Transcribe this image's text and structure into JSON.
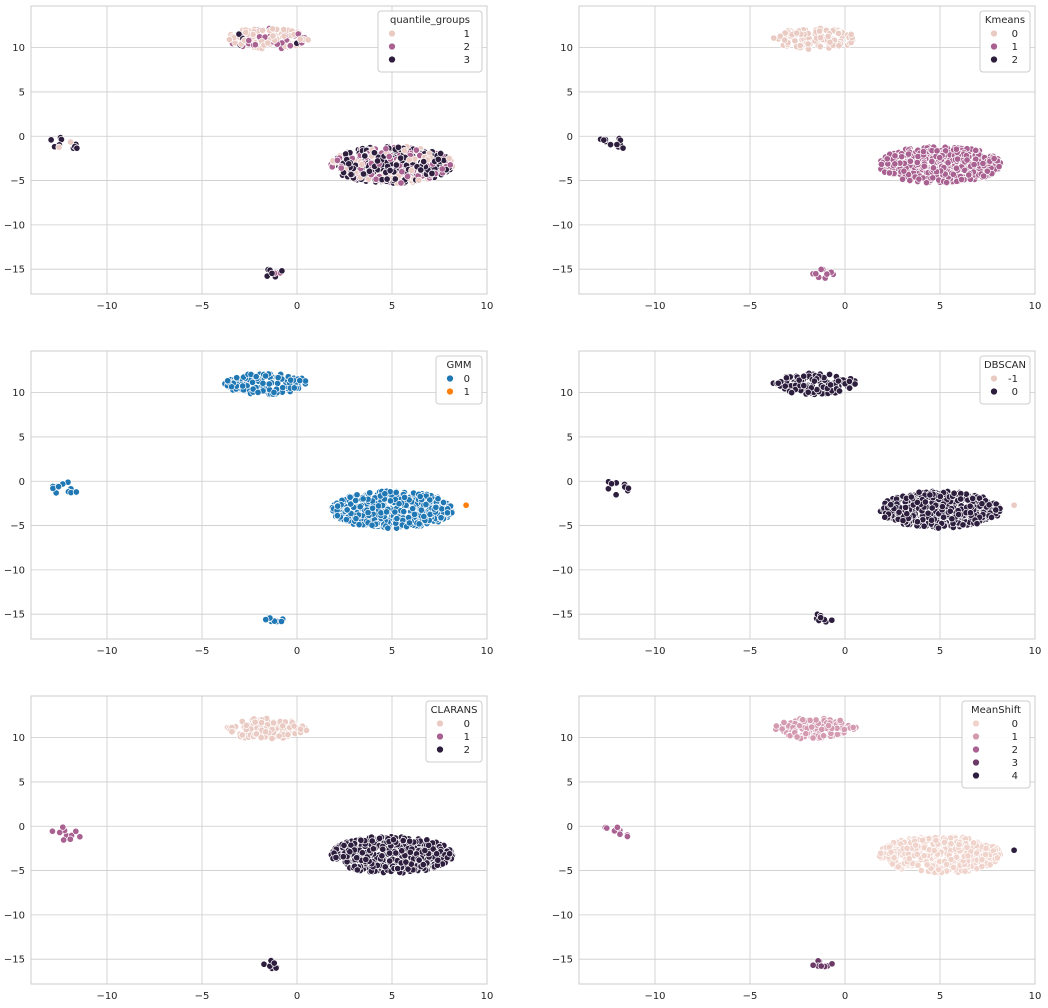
{
  "chart_data": [
    {
      "type": "scatter",
      "hue": "quantile_groups",
      "legend": {
        "title": "quantile_groups",
        "placement": "top-right",
        "entries": [
          {
            "label": "1",
            "color": "#eacbc3"
          },
          {
            "label": "2",
            "color": "#a86190"
          },
          {
            "label": "3",
            "color": "#2d1e3e"
          }
        ]
      },
      "xlim": [
        -14,
        10
      ],
      "ylim": [
        -17.8,
        14.7
      ],
      "xticks": [
        "−10",
        "−5",
        "0",
        "5",
        "10"
      ],
      "yticks": [
        "10",
        "5",
        "0",
        "−5",
        "−10",
        "−15"
      ],
      "grid": true,
      "clusters": [
        {
          "name": "top",
          "center": [
            -1.6,
            11.0
          ],
          "spread": [
            2.2,
            1.2
          ],
          "n": 130,
          "mix": [
            0.6,
            0.32,
            0.08
          ]
        },
        {
          "name": "right",
          "center": [
            5.0,
            -3.2
          ],
          "spread": [
            3.2,
            2.1
          ],
          "n": 520,
          "mix": [
            0.2,
            0.3,
            0.5
          ]
        },
        {
          "name": "left",
          "center": [
            -12.2,
            -0.8
          ],
          "spread": [
            0.9,
            0.8
          ],
          "n": 11,
          "mix": [
            0.1,
            0.1,
            0.8
          ]
        },
        {
          "name": "bottom",
          "center": [
            -1.2,
            -15.5
          ],
          "spread": [
            0.6,
            0.6
          ],
          "n": 9,
          "mix": [
            0,
            0.5,
            0.5
          ]
        }
      ]
    },
    {
      "type": "scatter",
      "hue": "Kmeans",
      "legend": {
        "title": "Kmeans",
        "placement": "top-right",
        "entries": [
          {
            "label": "0",
            "color": "#eacbc3"
          },
          {
            "label": "1",
            "color": "#a86190"
          },
          {
            "label": "2",
            "color": "#2d1e3e"
          }
        ]
      },
      "xlim": [
        -14,
        10
      ],
      "ylim": [
        -17.8,
        14.7
      ],
      "xticks": [
        "−10",
        "−5",
        "0",
        "5",
        "10"
      ],
      "yticks": [
        "10",
        "5",
        "0",
        "−5",
        "−10",
        "−15"
      ],
      "grid": true,
      "clusters": [
        {
          "name": "top",
          "center": [
            -1.6,
            11.0
          ],
          "spread": [
            2.2,
            1.2
          ],
          "n": 130,
          "mix": [
            1,
            0,
            0
          ]
        },
        {
          "name": "right",
          "center": [
            5.0,
            -3.2
          ],
          "spread": [
            3.2,
            2.1
          ],
          "n": 520,
          "mix": [
            0,
            1,
            0
          ]
        },
        {
          "name": "left",
          "center": [
            -12.2,
            -0.8
          ],
          "spread": [
            0.9,
            0.8
          ],
          "n": 11,
          "mix": [
            0,
            0,
            1
          ]
        },
        {
          "name": "bottom",
          "center": [
            -1.2,
            -15.5
          ],
          "spread": [
            0.6,
            0.6
          ],
          "n": 9,
          "mix": [
            0,
            1,
            0
          ]
        }
      ]
    },
    {
      "type": "scatter",
      "hue": "GMM",
      "legend": {
        "title": "GMM",
        "placement": "top-right",
        "entries": [
          {
            "label": "0",
            "color": "#1f77b4"
          },
          {
            "label": "1",
            "color": "#ff7f0e"
          }
        ]
      },
      "xlim": [
        -14,
        10
      ],
      "ylim": [
        -17.8,
        14.7
      ],
      "xticks": [
        "−10",
        "−5",
        "0",
        "5",
        "10"
      ],
      "yticks": [
        "10",
        "5",
        "0",
        "−5",
        "−10",
        "−15"
      ],
      "grid": true,
      "clusters": [
        {
          "name": "top",
          "center": [
            -1.6,
            11.0
          ],
          "spread": [
            2.2,
            1.2
          ],
          "n": 130,
          "mix": [
            1,
            0
          ]
        },
        {
          "name": "right",
          "center": [
            5.0,
            -3.2
          ],
          "spread": [
            3.2,
            2.1
          ],
          "n": 520,
          "mix": [
            1,
            0
          ]
        },
        {
          "name": "left",
          "center": [
            -12.2,
            -0.8
          ],
          "spread": [
            0.9,
            0.8
          ],
          "n": 11,
          "mix": [
            1,
            0
          ]
        },
        {
          "name": "bottom",
          "center": [
            -1.2,
            -15.5
          ],
          "spread": [
            0.6,
            0.6
          ],
          "n": 9,
          "mix": [
            1,
            0
          ]
        }
      ],
      "extra_points": [
        {
          "x": 8.9,
          "y": -2.7,
          "group": 1
        }
      ]
    },
    {
      "type": "scatter",
      "hue": "DBSCAN",
      "legend": {
        "title": "DBSCAN",
        "placement": "top-right",
        "entries": [
          {
            "label": "-1",
            "color": "#eacbc3"
          },
          {
            "label": "0",
            "color": "#2d1e3e"
          }
        ]
      },
      "xlim": [
        -14,
        10
      ],
      "ylim": [
        -17.8,
        14.7
      ],
      "xticks": [
        "−10",
        "−5",
        "0",
        "5",
        "10"
      ],
      "yticks": [
        "10",
        "5",
        "0",
        "−5",
        "−10",
        "−15"
      ],
      "grid": true,
      "clusters": [
        {
          "name": "top",
          "center": [
            -1.6,
            11.0
          ],
          "spread": [
            2.2,
            1.2
          ],
          "n": 130,
          "mix": [
            0,
            1
          ]
        },
        {
          "name": "right",
          "center": [
            5.0,
            -3.2
          ],
          "spread": [
            3.2,
            2.1
          ],
          "n": 520,
          "mix": [
            0,
            1
          ]
        },
        {
          "name": "left",
          "center": [
            -12.2,
            -0.8
          ],
          "spread": [
            0.9,
            0.8
          ],
          "n": 11,
          "mix": [
            0,
            1
          ]
        },
        {
          "name": "bottom",
          "center": [
            -1.2,
            -15.5
          ],
          "spread": [
            0.6,
            0.6
          ],
          "n": 9,
          "mix": [
            0,
            1
          ]
        }
      ],
      "extra_points": [
        {
          "x": 8.9,
          "y": -2.7,
          "group": 0
        }
      ]
    },
    {
      "type": "scatter",
      "hue": "CLARANS",
      "legend": {
        "title": "CLARANS",
        "placement": "top-right",
        "entries": [
          {
            "label": "0",
            "color": "#eacbc3"
          },
          {
            "label": "1",
            "color": "#a86190"
          },
          {
            "label": "2",
            "color": "#2d1e3e"
          }
        ]
      },
      "xlim": [
        -14,
        10
      ],
      "ylim": [
        -17.8,
        14.7
      ],
      "xticks": [
        "−10",
        "−5",
        "0",
        "5",
        "10"
      ],
      "yticks": [
        "10",
        "5",
        "0",
        "−5",
        "−10",
        "−15"
      ],
      "grid": true,
      "clusters": [
        {
          "name": "top",
          "center": [
            -1.6,
            11.0
          ],
          "spread": [
            2.2,
            1.2
          ],
          "n": 130,
          "mix": [
            1,
            0,
            0
          ]
        },
        {
          "name": "right",
          "center": [
            5.0,
            -3.2
          ],
          "spread": [
            3.2,
            2.1
          ],
          "n": 520,
          "mix": [
            0,
            0,
            1
          ]
        },
        {
          "name": "left",
          "center": [
            -12.2,
            -0.8
          ],
          "spread": [
            0.9,
            0.8
          ],
          "n": 11,
          "mix": [
            0,
            1,
            0
          ]
        },
        {
          "name": "bottom",
          "center": [
            -1.2,
            -15.5
          ],
          "spread": [
            0.6,
            0.6
          ],
          "n": 9,
          "mix": [
            0,
            0,
            1
          ]
        }
      ]
    },
    {
      "type": "scatter",
      "hue": "MeanShift",
      "legend": {
        "title": "MeanShift",
        "placement": "top-right",
        "entries": [
          {
            "label": "0",
            "color": "#f0d4cc"
          },
          {
            "label": "1",
            "color": "#d39ab0"
          },
          {
            "label": "2",
            "color": "#a86190"
          },
          {
            "label": "3",
            "color": "#6b3a67"
          },
          {
            "label": "4",
            "color": "#2d1e3e"
          }
        ]
      },
      "xlim": [
        -14,
        10
      ],
      "ylim": [
        -17.8,
        14.7
      ],
      "xticks": [
        "−10",
        "−5",
        "0",
        "5",
        "10"
      ],
      "yticks": [
        "10",
        "5",
        "0",
        "−5",
        "−10",
        "−15"
      ],
      "grid": true,
      "clusters": [
        {
          "name": "top",
          "center": [
            -1.6,
            11.0
          ],
          "spread": [
            2.2,
            1.2
          ],
          "n": 130,
          "mix": [
            0,
            1,
            0,
            0,
            0
          ]
        },
        {
          "name": "right",
          "center": [
            5.0,
            -3.2
          ],
          "spread": [
            3.2,
            2.1
          ],
          "n": 520,
          "mix": [
            1,
            0,
            0,
            0,
            0
          ]
        },
        {
          "name": "left",
          "center": [
            -12.2,
            -0.8
          ],
          "spread": [
            0.9,
            0.8
          ],
          "n": 11,
          "mix": [
            0,
            0,
            1,
            0,
            0
          ]
        },
        {
          "name": "bottom",
          "center": [
            -1.2,
            -15.5
          ],
          "spread": [
            0.6,
            0.6
          ],
          "n": 9,
          "mix": [
            0,
            0,
            0,
            1,
            0
          ]
        }
      ],
      "extra_points": [
        {
          "x": 8.9,
          "y": -2.7,
          "group": 4
        }
      ]
    }
  ]
}
